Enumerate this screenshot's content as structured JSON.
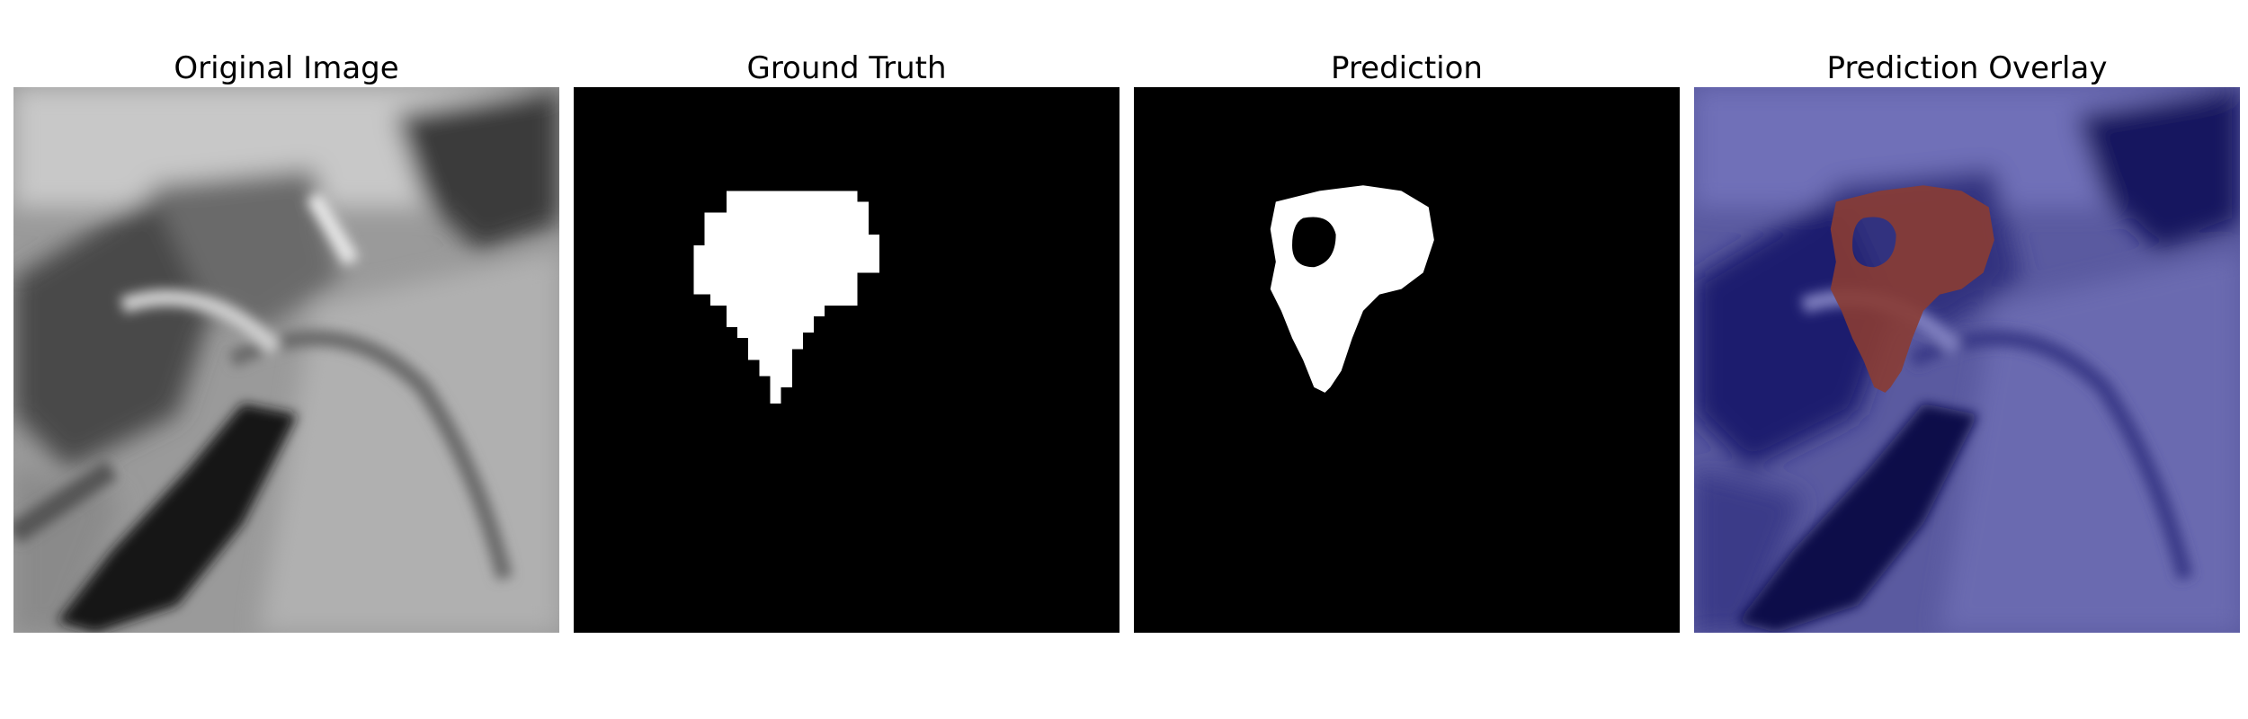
{
  "figure": {
    "panels": [
      {
        "title": "Original Image",
        "content": "grayscale MRI slice"
      },
      {
        "title": "Ground Truth",
        "content": "binary segmentation mask (white on black)"
      },
      {
        "title": "Prediction",
        "content": "binary predicted mask with hole (white on black)"
      },
      {
        "title": "Prediction Overlay",
        "content": "MRI slice with blue tint and red predicted region"
      }
    ],
    "colors": {
      "background": "#ffffff",
      "mask_bg": "#000000",
      "mask_fg": "#ffffff",
      "overlay_tint": "#2b2fa0",
      "overlay_lesion": "#8a3c33"
    }
  }
}
